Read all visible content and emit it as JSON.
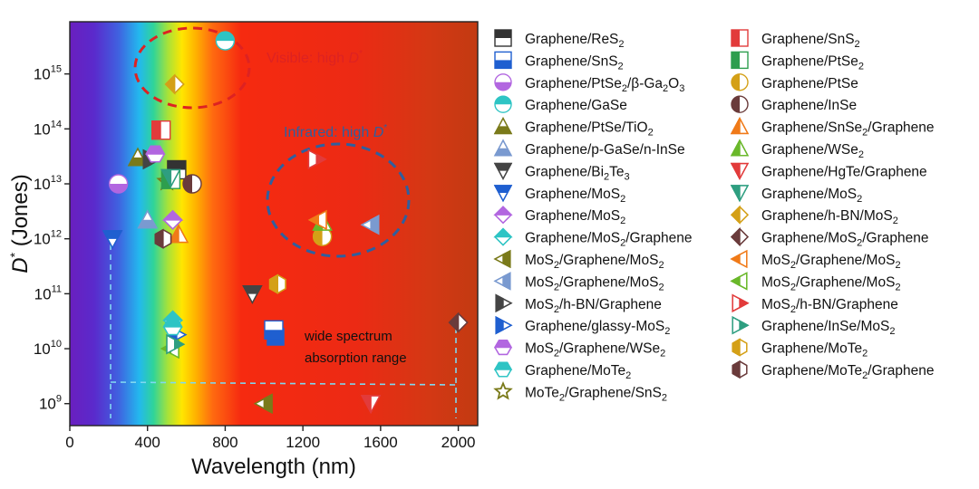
{
  "chart_data": {
    "type": "scatter",
    "xlabel": "Wavelength (nm)",
    "ylabel_var": "D",
    "ylabel_sup": "*",
    "ylabel_unit": " (Jones)",
    "xlim": [
      0,
      2100
    ],
    "ylim_log10": [
      8.6,
      15.95
    ],
    "y_scale": "log",
    "x_ticks": [
      0,
      400,
      800,
      1200,
      1600,
      2000
    ],
    "y_ticks_exp": [
      9,
      10,
      11,
      12,
      13,
      14,
      15
    ],
    "y_tick_base": "10",
    "background": "visible-spectrum gradient (violet to dark red)",
    "annotations": [
      {
        "id": "visible",
        "text": "Visible: high ",
        "var": "D",
        "sup": "*",
        "color": "#dd2222"
      },
      {
        "id": "infrared",
        "text": "Infrared: high ",
        "var": "D",
        "sup": "*",
        "color": "#2f5f9f"
      },
      {
        "id": "wide1",
        "text": "wide spectrum"
      },
      {
        "id": "wide2",
        "text": "absorption range"
      }
    ],
    "series": [
      {
        "name": "Graphene/ReS2",
        "marker": "square-half-top",
        "color": "#333333",
        "points": [
          [
            550,
            18000000000000.0
          ]
        ]
      },
      {
        "name": "Graphene/SnS2",
        "marker": "square-half-bottom",
        "color": "#1f5fd0",
        "points": [
          [
            1050,
            22000000000.0
          ]
        ]
      },
      {
        "name": "Graphene/PtSe2/β-Ga2O3",
        "marker": "circle-half-bottom",
        "color": "#b266e0",
        "points": [
          [
            250,
            10000000000000.0
          ]
        ]
      },
      {
        "name": "Graphene/GaSe",
        "marker": "circle-half-top",
        "color": "#2ec4c4",
        "points": [
          [
            800,
            4000000000000000.0
          ]
        ]
      },
      {
        "name": "Graphene/PtSe/TiO2",
        "marker": "triangle-up-half-bottom",
        "color": "#7a7a1a",
        "points": [
          [
            350,
            30000000000000.0
          ]
        ]
      },
      {
        "name": "Graphene/p-GaSe/n-InSe",
        "marker": "triangle-up-half-bottom",
        "color": "#7a9ad0",
        "points": [
          [
            400,
            2200000000000.0
          ]
        ]
      },
      {
        "name": "Graphene/Bi2Te3",
        "marker": "triangle-down-half-top",
        "color": "#444444",
        "points": [
          [
            940,
            100000000000.0
          ]
        ]
      },
      {
        "name": "Graphene/MoS2",
        "marker": "triangle-down-half-top",
        "color": "#1f5fd0",
        "points": [
          [
            220,
            1000000000000.0
          ]
        ]
      },
      {
        "name": "Graphene/MoS2",
        "marker": "diamond-half-top",
        "color": "#b266e0",
        "points": [
          [
            530,
            2200000000000.0
          ]
        ]
      },
      {
        "name": "Graphene/MoS2/Graphene",
        "marker": "diamond-half-top",
        "color": "#2ec4c4",
        "points": [
          [
            530,
            33000000000.0
          ]
        ]
      },
      {
        "name": "MoS2/Graphene/MoS2",
        "marker": "triangle-left-half-right",
        "color": "#7a7a1a",
        "points": [
          [
            1000,
            1000000000.0
          ]
        ]
      },
      {
        "name": "MoS2/Graphene/MoS2",
        "marker": "triangle-left-half-right",
        "color": "#7a9ad0",
        "points": [
          [
            1550,
            1800000000000.0
          ]
        ]
      },
      {
        "name": "MoS2/h-BN/Graphene",
        "marker": "triangle-right-half-left",
        "color": "#444444",
        "points": [
          [
            420,
            28000000000000.0
          ]
        ]
      },
      {
        "name": "Graphene/glassy-MoS2",
        "marker": "triangle-right-half-left",
        "color": "#1f5fd0",
        "points": [
          [
            550,
            18000000000.0
          ]
        ]
      },
      {
        "name": "MoS2/Graphene/WSe2",
        "marker": "hexagon-half-top",
        "color": "#b266e0",
        "points": [
          [
            440,
            35000000000000.0
          ]
        ]
      },
      {
        "name": "Graphene/MoTe2",
        "marker": "hexagon-half-top",
        "color": "#2ec4c4",
        "points": [
          [
            530,
            25000000000.0
          ]
        ]
      },
      {
        "name": "MoTe2/Graphene/SnS2",
        "marker": "star-open",
        "color": "#7a7a1a",
        "points": [
          [
            500,
            11000000000000.0
          ]
        ]
      },
      {
        "name": "Graphene/SnS2",
        "marker": "square-half-left",
        "color": "#e23b3b",
        "points": [
          [
            470,
            95000000000000.0
          ]
        ]
      },
      {
        "name": "Graphene/PtSe2",
        "marker": "square-half-left",
        "color": "#2e9e4e",
        "points": [
          [
            520,
            12000000000000.0
          ]
        ]
      },
      {
        "name": "Graphene/PtSe",
        "marker": "circle-half-left",
        "color": "#d4a017",
        "points": [
          [
            1300,
            1100000000000.0
          ]
        ]
      },
      {
        "name": "Graphene/InSe",
        "marker": "circle-half-left",
        "color": "#6a3b3b",
        "points": [
          [
            630,
            10000000000000.0
          ]
        ]
      },
      {
        "name": "Graphene/SnSe2/Graphene",
        "marker": "triangle-up-half-left",
        "color": "#f07a18",
        "points": [
          [
            560,
            1200000000000.0
          ]
        ]
      },
      {
        "name": "Graphene/WSe2",
        "marker": "triangle-up-half-left",
        "color": "#6ab82a",
        "points": [
          [
            1300,
            2000000000000.0
          ]
        ]
      },
      {
        "name": "Graphene/HgTe/Graphene",
        "marker": "triangle-down-half-left",
        "color": "#e23b3b",
        "points": [
          [
            1550,
            1000000000.0
          ]
        ]
      },
      {
        "name": "Graphene/MoS2",
        "marker": "triangle-down-half-left",
        "color": "#2e9e80",
        "points": [
          [
            520,
            13000000000000.0
          ]
        ]
      },
      {
        "name": "Graphene/h-BN/MoS2",
        "marker": "diamond-half-left",
        "color": "#d4a017",
        "points": [
          [
            540,
            650000000000000.0
          ]
        ]
      },
      {
        "name": "Graphene/MoS2/Graphene",
        "marker": "diamond-half-left",
        "color": "#6a3b3b",
        "points": [
          [
            2000,
            30000000000.0
          ]
        ]
      },
      {
        "name": "MoS2/Graphene/MoS2",
        "marker": "triangle-left-half-left",
        "color": "#f07a18",
        "points": [
          [
            1280,
            2200000000000.0
          ]
        ]
      },
      {
        "name": "MoS2/Graphene/MoS2",
        "marker": "triangle-left-half-left",
        "color": "#6ab82a",
        "points": [
          [
            520,
            10000000000.0
          ]
        ]
      },
      {
        "name": "MoS2/h-BN/Graphene",
        "marker": "triangle-right-half-right",
        "color": "#e23b3b",
        "points": [
          [
            1270,
            28000000000000.0
          ]
        ]
      },
      {
        "name": "Graphene/InSe/MoS2",
        "marker": "triangle-right-half-right",
        "color": "#2e9e80",
        "points": [
          [
            540,
            12000000000.0
          ]
        ]
      },
      {
        "name": "Graphene/MoTe2",
        "marker": "hexagon-half-left",
        "color": "#d4a017",
        "points": [
          [
            1070,
            150000000000.0
          ]
        ]
      },
      {
        "name": "Graphene/MoTe2/Graphene",
        "marker": "hexagon-half-left",
        "color": "#6a3b3b",
        "points": [
          [
            480,
            1000000000000.0
          ]
        ]
      }
    ]
  }
}
